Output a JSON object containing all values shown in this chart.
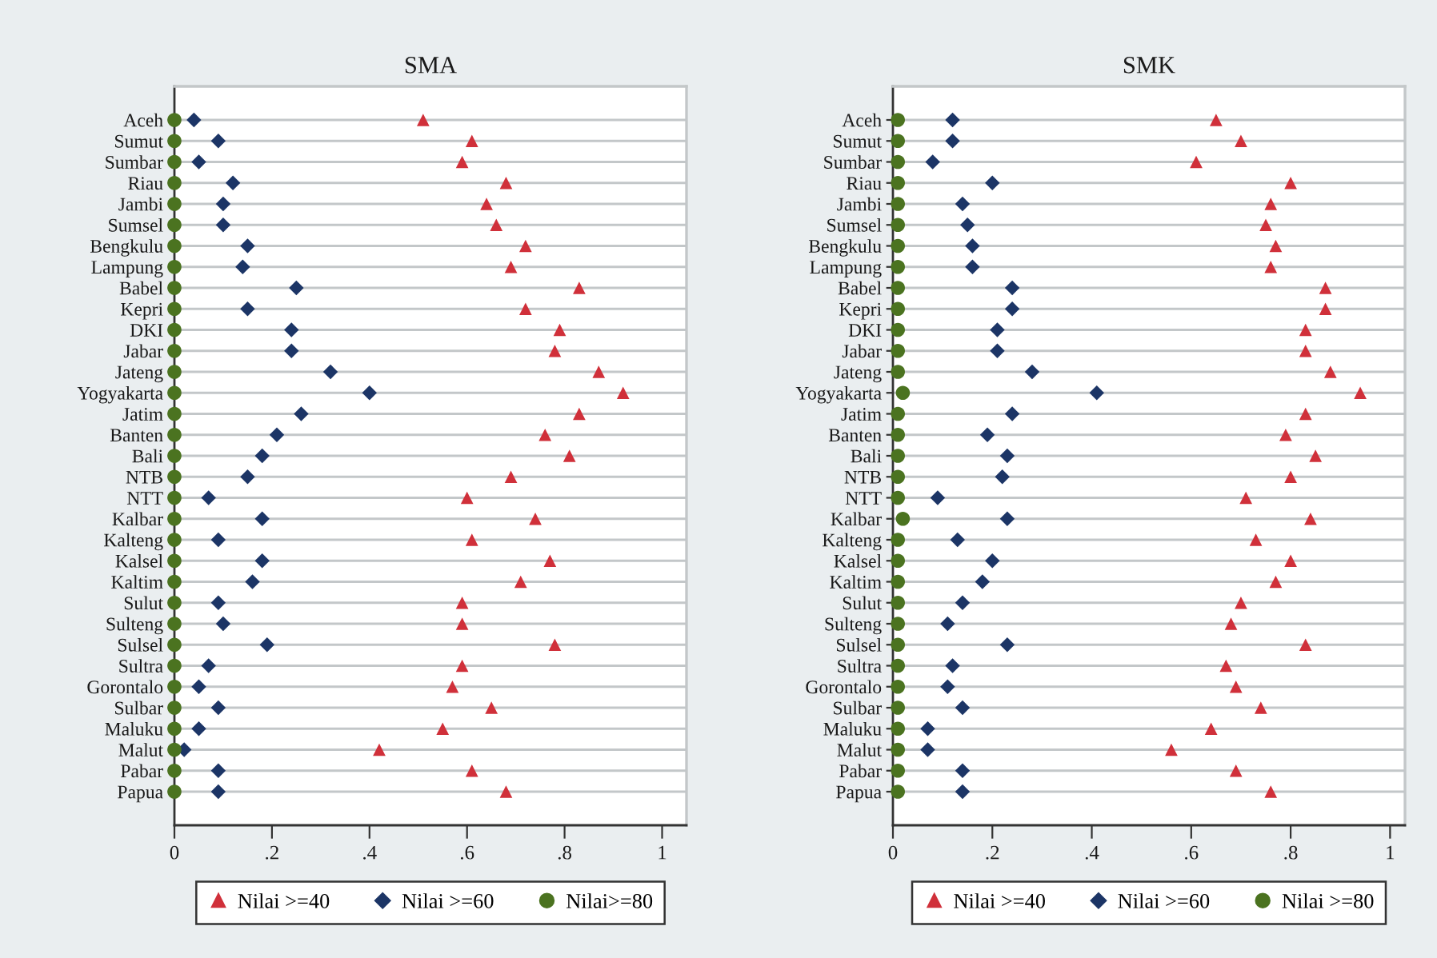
{
  "chart_data": [
    {
      "type": "scatter",
      "title": "SMA",
      "orientation": "horizontal",
      "grid": "y",
      "legend": "bottom",
      "categories": [
        "Aceh",
        "Sumut",
        "Sumbar",
        "Riau",
        "Jambi",
        "Sumsel",
        "Bengkulu",
        "Lampung",
        "Babel",
        "Kepri",
        "DKI",
        "Jabar",
        "Jateng",
        "Yogyakarta",
        "Jatim",
        "Banten",
        "Bali",
        "NTB",
        "NTT",
        "Kalbar",
        "Kalteng",
        "Kalsel",
        "Kaltim",
        "Sulut",
        "Sulteng",
        "Sulsel",
        "Sultra",
        "Gorontalo",
        "Sulbar",
        "Maluku",
        "Malut",
        "Pabar",
        "Papua"
      ],
      "xlim": [
        0,
        1.05
      ],
      "xticks": [
        0,
        {
          "value": 0.2,
          "label": ".2"
        },
        {
          "value": 0.4,
          "label": ".4"
        },
        {
          "value": 0.6,
          "label": ".6"
        },
        {
          "value": 0.8,
          "label": ".8"
        },
        1
      ],
      "series": [
        {
          "name": "Nilai >=40",
          "color": "#d0303a",
          "marker": "triangle",
          "values": [
            0.51,
            0.61,
            0.59,
            0.68,
            0.64,
            0.66,
            0.72,
            0.69,
            0.83,
            0.72,
            0.79,
            0.78,
            0.87,
            0.92,
            0.83,
            0.76,
            0.81,
            0.69,
            0.6,
            0.74,
            0.61,
            0.77,
            0.71,
            0.59,
            0.59,
            0.78,
            0.59,
            0.57,
            0.65,
            0.55,
            0.42,
            0.61,
            0.68
          ]
        },
        {
          "name": "Nilai >=60",
          "color": "#1c3566",
          "marker": "diamond",
          "values": [
            0.04,
            0.09,
            0.05,
            0.12,
            0.1,
            0.1,
            0.15,
            0.14,
            0.25,
            0.15,
            0.24,
            0.24,
            0.32,
            0.4,
            0.26,
            0.21,
            0.18,
            0.15,
            0.07,
            0.18,
            0.09,
            0.18,
            0.16,
            0.09,
            0.1,
            0.19,
            0.07,
            0.05,
            0.09,
            0.05,
            0.02,
            0.09,
            0.09
          ]
        },
        {
          "name": "Nilai>=80",
          "color": "#4b7320",
          "marker": "circle",
          "values": [
            0,
            0,
            0,
            0,
            0,
            0,
            0,
            0,
            0,
            0,
            0,
            0,
            0,
            0,
            0,
            0,
            0,
            0,
            0,
            0,
            0,
            0,
            0,
            0,
            0,
            0,
            0,
            0,
            0,
            0,
            0,
            0,
            0
          ]
        }
      ]
    },
    {
      "type": "scatter",
      "title": "SMK",
      "orientation": "horizontal",
      "grid": "y",
      "legend": "bottom",
      "categories": [
        "Aceh",
        "Sumut",
        "Sumbar",
        "Riau",
        "Jambi",
        "Sumsel",
        "Bengkulu",
        "Lampung",
        "Babel",
        "Kepri",
        "DKI",
        "Jabar",
        "Jateng",
        "Yogyakarta",
        "Jatim",
        "Banten",
        "Bali",
        "NTB",
        "NTT",
        "Kalbar",
        "Kalteng",
        "Kalsel",
        "Kaltim",
        "Sulut",
        "Sulteng",
        "Sulsel",
        "Sultra",
        "Gorontalo",
        "Sulbar",
        "Maluku",
        "Malut",
        "Pabar",
        "Papua"
      ],
      "xlim": [
        0,
        1.03
      ],
      "xticks": [
        0,
        {
          "value": 0.2,
          "label": ".2"
        },
        {
          "value": 0.4,
          "label": ".4"
        },
        {
          "value": 0.6,
          "label": ".6"
        },
        {
          "value": 0.8,
          "label": ".8"
        },
        1
      ],
      "series": [
        {
          "name": "Nilai >=40",
          "color": "#d0303a",
          "marker": "triangle",
          "values": [
            0.65,
            0.7,
            0.61,
            0.8,
            0.76,
            0.75,
            0.77,
            0.76,
            0.87,
            0.87,
            0.83,
            0.83,
            0.88,
            0.94,
            0.83,
            0.79,
            0.85,
            0.8,
            0.71,
            0.84,
            0.73,
            0.8,
            0.77,
            0.7,
            0.68,
            0.83,
            0.67,
            0.69,
            0.74,
            0.64,
            0.56,
            0.69,
            0.76
          ]
        },
        {
          "name": "Nilai >=60",
          "color": "#1c3566",
          "marker": "diamond",
          "values": [
            0.12,
            0.12,
            0.08,
            0.2,
            0.14,
            0.15,
            0.16,
            0.16,
            0.24,
            0.24,
            0.21,
            0.21,
            0.28,
            0.41,
            0.24,
            0.19,
            0.23,
            0.22,
            0.09,
            0.23,
            0.13,
            0.2,
            0.18,
            0.14,
            0.11,
            0.23,
            0.12,
            0.11,
            0.14,
            0.07,
            0.07,
            0.14,
            0.14
          ]
        },
        {
          "name": "Nilai >=80",
          "color": "#4b7320",
          "marker": "circle",
          "values": [
            0.01,
            0.01,
            0.01,
            0.01,
            0.01,
            0.01,
            0.01,
            0.01,
            0.01,
            0.01,
            0.01,
            0.01,
            0.01,
            0.02,
            0.01,
            0.01,
            0.01,
            0.01,
            0.01,
            0.02,
            0.01,
            0.01,
            0.01,
            0.01,
            0.01,
            0.01,
            0.01,
            0.01,
            0.01,
            0.01,
            0.01,
            0.01,
            0.01
          ]
        }
      ]
    }
  ]
}
